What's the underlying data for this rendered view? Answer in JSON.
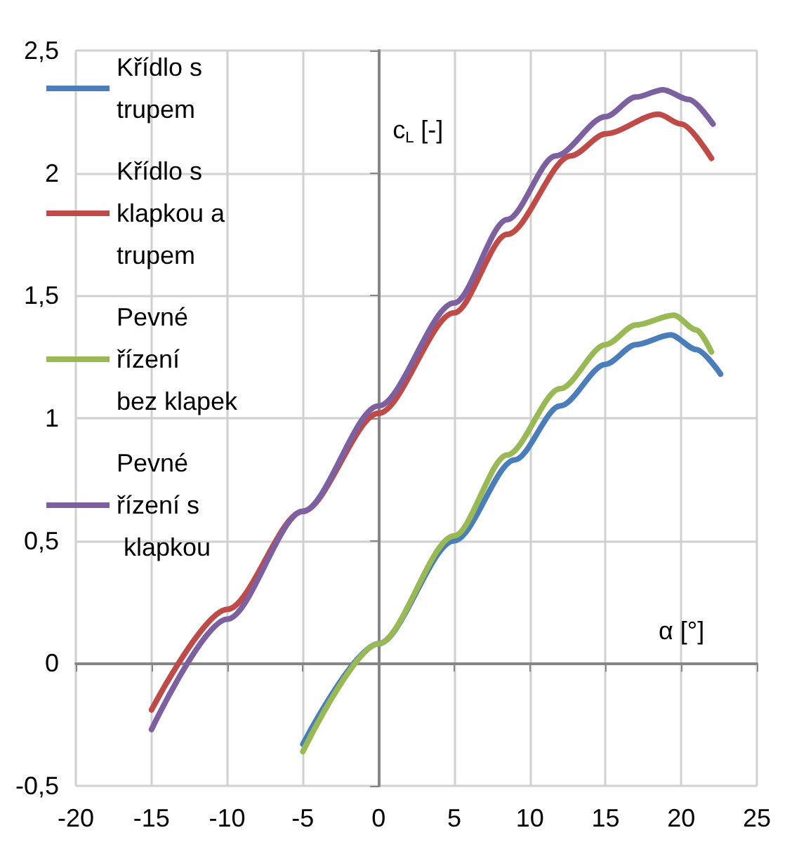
{
  "chart_data": {
    "type": "line",
    "xlabel": "α [°]",
    "ylabel": "c$_{L}$ [-]",
    "xlim": [
      -20,
      25
    ],
    "xticks": [
      -20,
      -15,
      -10,
      -5,
      0,
      5,
      10,
      15,
      20,
      25
    ],
    "ylim": [
      -0.5,
      2.5
    ],
    "yticks": [
      {
        "value": -0.5,
        "label": "-0,5"
      },
      0,
      {
        "value": 0.5,
        "label": "0,5"
      },
      1,
      {
        "value": 1.5,
        "label": "1,5"
      },
      2,
      {
        "value": 2.5,
        "label": "2,5"
      }
    ],
    "grid": true,
    "legend": "top left",
    "marker": "none",
    "line_style": "solid",
    "series": [
      {
        "name": "Křídlo s trupem",
        "color": "#4a7ebb",
        "x": [
          -5,
          0,
          5,
          9,
          12,
          15,
          17,
          19.3,
          21,
          22.6
        ],
        "values": [
          -0.33,
          0.08,
          0.5,
          0.83,
          1.05,
          1.22,
          1.3,
          1.34,
          1.28,
          1.18
        ]
      },
      {
        "name": "Křídlo s klapkou a trupem",
        "color": "#be4b48",
        "x": [
          -15,
          -10,
          -5,
          0,
          5,
          8.5,
          12.7,
          15,
          18.5,
          20,
          22
        ],
        "values": [
          -0.19,
          0.22,
          0.62,
          1.02,
          1.43,
          1.75,
          2.07,
          2.16,
          2.24,
          2.2,
          2.06
        ]
      },
      {
        "name": "Pevné řízení bez klapek",
        "color": "#98b954",
        "x": [
          -5,
          0,
          5,
          8.5,
          12,
          15,
          17,
          19.5,
          21,
          22
        ],
        "values": [
          -0.36,
          0.08,
          0.52,
          0.85,
          1.12,
          1.3,
          1.38,
          1.42,
          1.36,
          1.27
        ]
      },
      {
        "name": "Pevné řízení s klapkou",
        "color": "#7d60a0",
        "x": [
          -15,
          -10,
          -5,
          0,
          5,
          8.5,
          11.7,
          15,
          17,
          18.8,
          20.5,
          22.1
        ],
        "values": [
          -0.27,
          0.18,
          0.62,
          1.05,
          1.47,
          1.81,
          2.07,
          2.23,
          2.31,
          2.34,
          2.3,
          2.2
        ]
      }
    ]
  }
}
